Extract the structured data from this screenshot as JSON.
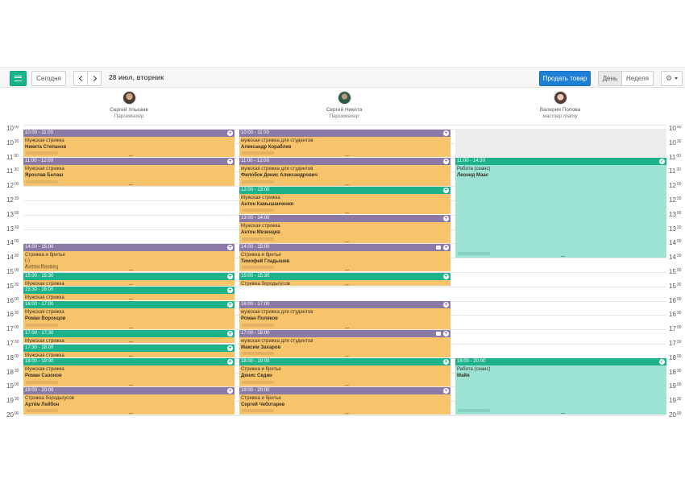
{
  "toolbar": {
    "today_label": "Сегодня",
    "date_title": "28 июл, вторник",
    "sell_label": "Продать товар",
    "day_label": "День",
    "week_label": "Неделя"
  },
  "staff": [
    {
      "name": "Сергей Ульканв",
      "role": "Парикмахер"
    },
    {
      "name": "Сергей Никита",
      "role": "Парикмахер"
    },
    {
      "name": "Валерия Попова",
      "role": "мастер тату"
    }
  ],
  "time_labels": [
    {
      "h": "10",
      "m": "00"
    },
    {
      "h": "10",
      "m": "30"
    },
    {
      "h": "11",
      "m": "00"
    },
    {
      "h": "11",
      "m": "30"
    },
    {
      "h": "12",
      "m": "00"
    },
    {
      "h": "12",
      "m": "30"
    },
    {
      "h": "13",
      "m": "00"
    },
    {
      "h": "13",
      "m": "30"
    },
    {
      "h": "14",
      "m": "00"
    },
    {
      "h": "14",
      "m": "30"
    },
    {
      "h": "15",
      "m": "00"
    },
    {
      "h": "15",
      "m": "30"
    },
    {
      "h": "16",
      "m": "00"
    },
    {
      "h": "16",
      "m": "30"
    },
    {
      "h": "17",
      "m": "00"
    },
    {
      "h": "17",
      "m": "30"
    },
    {
      "h": "18",
      "m": "00"
    },
    {
      "h": "18",
      "m": "30"
    },
    {
      "h": "19",
      "m": "00"
    },
    {
      "h": "19",
      "m": "30"
    },
    {
      "h": "20",
      "m": "00"
    }
  ],
  "events": [
    {
      "col": 0,
      "start": "10:00",
      "end": "11:00",
      "label": "10:00 - 11:00",
      "service": "Мужская стрижка",
      "client": "Никита Степанов",
      "color": "purple",
      "icon": "plus"
    },
    {
      "col": 0,
      "start": "11:00",
      "end": "12:00",
      "label": "11:00 - 12:00",
      "service": "Мужская стрижка",
      "client": "Ярослав Белаш",
      "color": "purple",
      "icon": "plus"
    },
    {
      "col": 0,
      "start": "14:00",
      "end": "15:00",
      "label": "14:00 - 15:00",
      "service": "Стрижка и бритье",
      "extra": "(-)",
      "client": "Антон Киевец",
      "color": "purple",
      "icon": "plus"
    },
    {
      "col": 0,
      "start": "15:00",
      "end": "15:30",
      "label": "15:00 - 15:30",
      "service": "Мужская стрижка",
      "client": "",
      "color": "green",
      "icon": "plus"
    },
    {
      "col": 0,
      "start": "15:30",
      "end": "16:00",
      "label": "15:30 - 16:00",
      "service": "Мужская стрижка",
      "client": "",
      "color": "green",
      "icon": "plus"
    },
    {
      "col": 0,
      "start": "16:00",
      "end": "17:00",
      "label": "16:00 - 17:00",
      "service": "Мужская стрижка",
      "client": "Роман Воронцов",
      "color": "green",
      "icon": "plus"
    },
    {
      "col": 0,
      "start": "17:00",
      "end": "17:30",
      "label": "17:00 - 17:30",
      "service": "Мужская стрижка",
      "client": "",
      "color": "green",
      "icon": "plus"
    },
    {
      "col": 0,
      "start": "17:30",
      "end": "18:00",
      "label": "17:30 - 18:00",
      "service": "Мужская стрижка",
      "client": "",
      "color": "green",
      "icon": "plus"
    },
    {
      "col": 0,
      "start": "18:00",
      "end": "19:00",
      "label": "18:00 - 19:00",
      "service": "Мужская стрижка",
      "client": "Роман Сазонов",
      "color": "green",
      "icon": "plus"
    },
    {
      "col": 0,
      "start": "19:00",
      "end": "20:00",
      "label": "19:00 - 20:00",
      "service": "Стрижка бороды/усов",
      "client": "Артём Лейбон",
      "color": "purple",
      "icon": "plus"
    },
    {
      "col": 1,
      "start": "10:00",
      "end": "11:00",
      "label": "10:00 - 11:00",
      "service": "мужская стрижка для студентов",
      "client": "Александр Кораблев",
      "color": "purple",
      "icon": "plus"
    },
    {
      "col": 1,
      "start": "11:00",
      "end": "12:00",
      "label": "11:00 - 12:00",
      "service": "мужская стрижка для студентов",
      "client": "Филобок Денис Александрович",
      "color": "purple",
      "icon": "plus"
    },
    {
      "col": 1,
      "start": "12:00",
      "end": "13:00",
      "label": "12:00 - 13:00",
      "service": "Мужская стрижка",
      "client": "Антон Камышанченко",
      "color": "green",
      "icon": "plus"
    },
    {
      "col": 1,
      "start": "13:00",
      "end": "14:00",
      "label": "13:00 - 14:00",
      "service": "Мужская стрижка",
      "client": "Антон Мезенцев",
      "color": "purple",
      "icon": "plus"
    },
    {
      "col": 1,
      "start": "14:00",
      "end": "15:00",
      "label": "14:00 - 15:00",
      "service": "Стрижка и бритье",
      "client": "Тимофей Гладышев",
      "color": "purple",
      "icon": "plus",
      "lock": true
    },
    {
      "col": 1,
      "start": "15:00",
      "end": "15:30",
      "label": "15:00 - 15:30",
      "service": "Стрижка бороды/усов",
      "client": "",
      "color": "green",
      "icon": "plus"
    },
    {
      "col": 1,
      "start": "16:00",
      "end": "17:00",
      "label": "16:00 - 17:00",
      "service": "мужская стрижка для студентов",
      "client": "Роман Поляков",
      "color": "purple",
      "icon": "plus"
    },
    {
      "col": 1,
      "start": "17:00",
      "end": "18:00",
      "label": "17:00 - 18:00",
      "service": "мужская стрижка для студентов",
      "client": "Максим Захаров",
      "color": "purple",
      "icon": "plus",
      "lock": true
    },
    {
      "col": 1,
      "start": "18:00",
      "end": "19:00",
      "label": "18:00 - 19:00",
      "service": "Стрижка и бритье",
      "client": "Денис Седин",
      "color": "green",
      "icon": "plus"
    },
    {
      "col": 1,
      "start": "19:00",
      "end": "20:00",
      "label": "19:00 - 20:00",
      "service": "Стрижка и бритье",
      "client": "Сергей Чеботарев",
      "color": "purple",
      "icon": "plus"
    },
    {
      "col": 2,
      "start": "11:00",
      "end": "14:30",
      "label": "11:00 - 14:30",
      "service": "Работа (сеанс)",
      "client": "Леонид Маас",
      "color": "green",
      "icon": "check",
      "work": true
    },
    {
      "col": 2,
      "start": "18:00",
      "end": "20:00",
      "label": "18:00 - 20:00",
      "service": "Работа (сеанс)",
      "client": "Майя",
      "color": "green",
      "icon": "check",
      "work": true
    }
  ],
  "blocked": [
    {
      "col": 2,
      "start": "10:00",
      "end": "11:00"
    }
  ]
}
